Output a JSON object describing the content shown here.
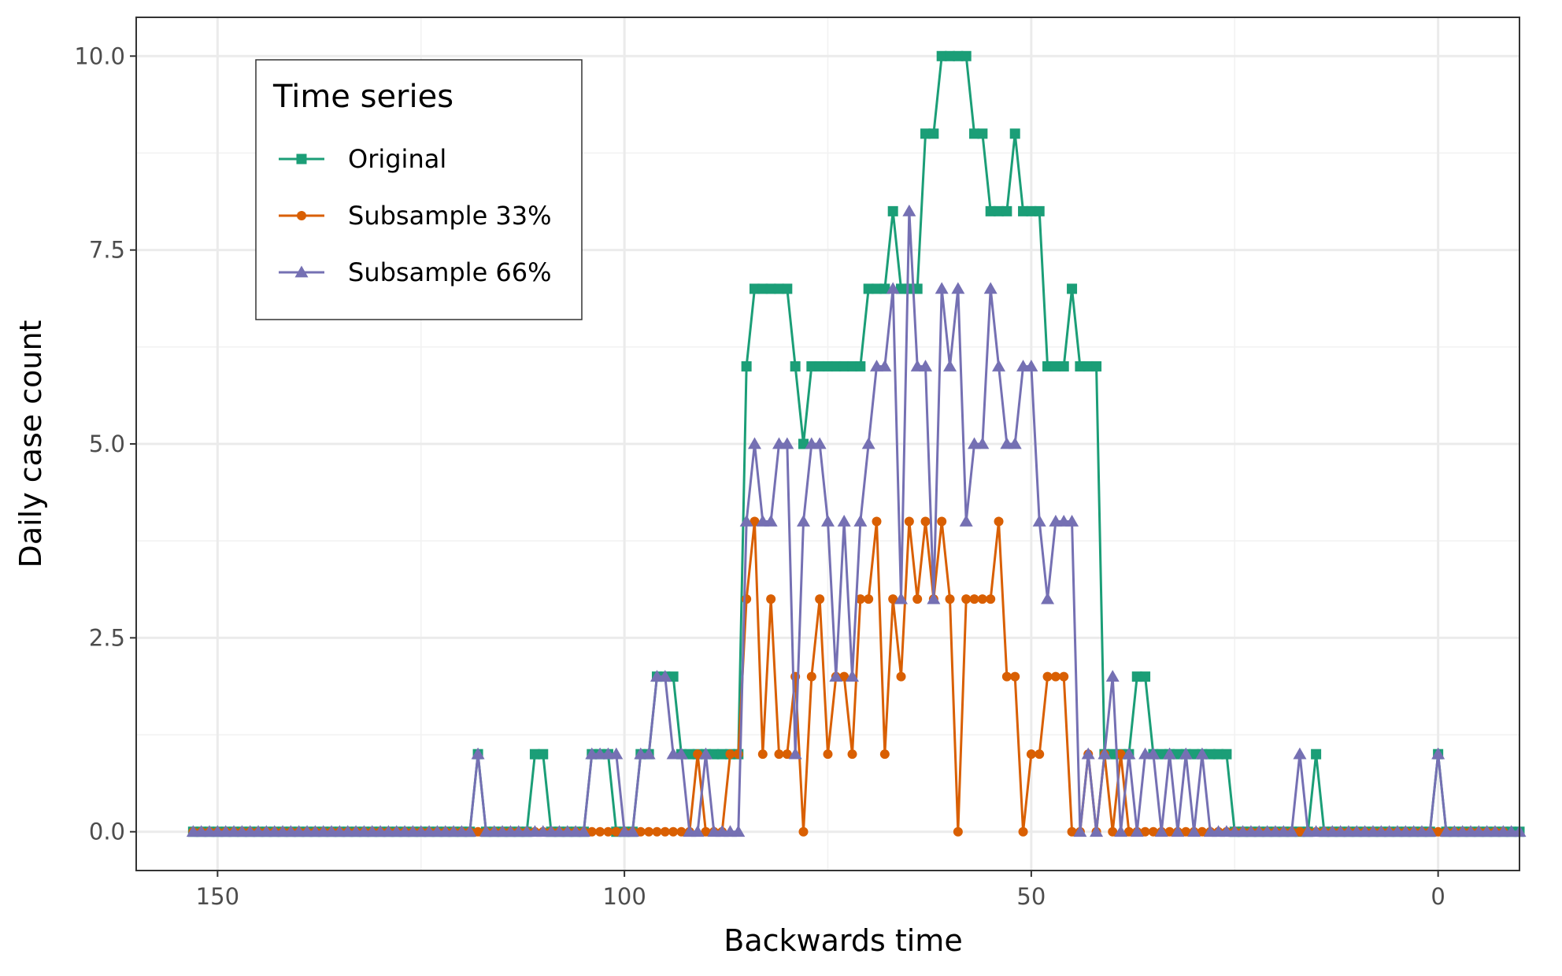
{
  "chart_data": {
    "type": "line",
    "xlabel": "Backwards time",
    "ylabel": "Daily case count",
    "xlim": [
      160,
      -10
    ],
    "ylim": [
      -0.5,
      10.5
    ],
    "x_reversed": true,
    "x_ticks": [
      150,
      100,
      50,
      0
    ],
    "x_tick_labels": [
      "150",
      "100",
      "50",
      "0"
    ],
    "y_ticks": [
      0,
      2.5,
      5,
      7.5,
      10
    ],
    "y_tick_labels": [
      "0.0",
      "2.5",
      "5.0",
      "7.5",
      "10.0"
    ],
    "grid": true,
    "x_start": 153,
    "x_step": -1,
    "legend": {
      "title": "Time series",
      "position": "top-left"
    },
    "series": [
      {
        "name": "Original",
        "color": "#1b9e77",
        "marker": "square",
        "values": [
          0,
          0,
          0,
          0,
          0,
          0,
          0,
          0,
          0,
          0,
          0,
          0,
          0,
          0,
          0,
          0,
          0,
          0,
          0,
          0,
          0,
          0,
          0,
          0,
          0,
          0,
          0,
          0,
          0,
          0,
          0,
          0,
          0,
          0,
          0,
          1,
          0,
          0,
          0,
          0,
          0,
          0,
          1,
          1,
          0,
          0,
          0,
          0,
          0,
          1,
          1,
          1,
          0,
          0,
          0,
          1,
          1,
          2,
          2,
          2,
          1,
          1,
          1,
          1,
          1,
          1,
          1,
          1,
          6,
          7,
          7,
          7,
          7,
          7,
          6,
          5,
          6,
          6,
          6,
          6,
          6,
          6,
          6,
          7,
          7,
          7,
          8,
          7,
          7,
          7,
          9,
          9,
          10,
          10,
          10,
          10,
          9,
          9,
          8,
          8,
          8,
          9,
          8,
          8,
          8,
          6,
          6,
          6,
          7,
          6,
          6,
          6,
          1,
          1,
          1,
          1,
          2,
          2,
          1,
          1,
          1,
          1,
          1,
          1,
          1,
          1,
          1,
          1,
          0,
          0,
          0,
          0,
          0,
          0,
          0,
          0,
          0,
          0,
          1,
          0,
          0,
          0,
          0,
          0,
          0,
          0,
          0,
          0,
          0,
          0,
          0,
          0,
          0,
          1,
          0,
          0,
          0,
          0,
          0,
          0,
          0,
          0,
          0,
          0
        ]
      },
      {
        "name": "Subsample 33%",
        "color": "#d95f02",
        "marker": "circle",
        "values": [
          0,
          0,
          0,
          0,
          0,
          0,
          0,
          0,
          0,
          0,
          0,
          0,
          0,
          0,
          0,
          0,
          0,
          0,
          0,
          0,
          0,
          0,
          0,
          0,
          0,
          0,
          0,
          0,
          0,
          0,
          0,
          0,
          0,
          0,
          0,
          0,
          0,
          0,
          0,
          0,
          0,
          0,
          0,
          0,
          0,
          0,
          0,
          0,
          0,
          0,
          0,
          0,
          0,
          0,
          0,
          0,
          0,
          0,
          0,
          0,
          0,
          0,
          1,
          0,
          0,
          0,
          1,
          1,
          3,
          4,
          1,
          3,
          1,
          1,
          2,
          0,
          2,
          3,
          1,
          2,
          2,
          1,
          3,
          3,
          4,
          1,
          3,
          2,
          4,
          3,
          4,
          3,
          4,
          3,
          0,
          3,
          3,
          3,
          3,
          4,
          2,
          2,
          0,
          1,
          1,
          2,
          2,
          2,
          0,
          0,
          1,
          0,
          1,
          0,
          1,
          0,
          0,
          0,
          0,
          0,
          0,
          0,
          0,
          0,
          0,
          0,
          0,
          0,
          0,
          0,
          0,
          0,
          0,
          0,
          0,
          0,
          0,
          0,
          0,
          0,
          0,
          0,
          0,
          0,
          0,
          0,
          0,
          0,
          0,
          0,
          0,
          0,
          0,
          0,
          0,
          0,
          0,
          0,
          0,
          0,
          0,
          0
        ]
      },
      {
        "name": "Subsample 66%",
        "color": "#7570b3",
        "marker": "triangle",
        "values": [
          0,
          0,
          0,
          0,
          0,
          0,
          0,
          0,
          0,
          0,
          0,
          0,
          0,
          0,
          0,
          0,
          0,
          0,
          0,
          0,
          0,
          0,
          0,
          0,
          0,
          0,
          0,
          0,
          0,
          0,
          0,
          0,
          0,
          0,
          0,
          1,
          0,
          0,
          0,
          0,
          0,
          0,
          0,
          0,
          0,
          0,
          0,
          0,
          0,
          1,
          1,
          1,
          1,
          0,
          0,
          1,
          1,
          2,
          2,
          1,
          1,
          0,
          0,
          1,
          0,
          0,
          0,
          0,
          4,
          5,
          4,
          4,
          5,
          5,
          1,
          4,
          5,
          5,
          4,
          2,
          4,
          2,
          4,
          5,
          6,
          6,
          7,
          3,
          8,
          6,
          6,
          3,
          7,
          6,
          7,
          4,
          5,
          5,
          7,
          6,
          5,
          5,
          6,
          6,
          4,
          3,
          4,
          4,
          4,
          0,
          1,
          0,
          1,
          2,
          0,
          1,
          0,
          1,
          1,
          0,
          1,
          0,
          1,
          0,
          1,
          0,
          0,
          0,
          0,
          0,
          0,
          0,
          0,
          0,
          0,
          0,
          1,
          0,
          0,
          0,
          0,
          0,
          0,
          0,
          0,
          0,
          0,
          0,
          0,
          0,
          0,
          0,
          0,
          1,
          0,
          0,
          0,
          0,
          0,
          0,
          0,
          0,
          0,
          0
        ]
      }
    ]
  }
}
